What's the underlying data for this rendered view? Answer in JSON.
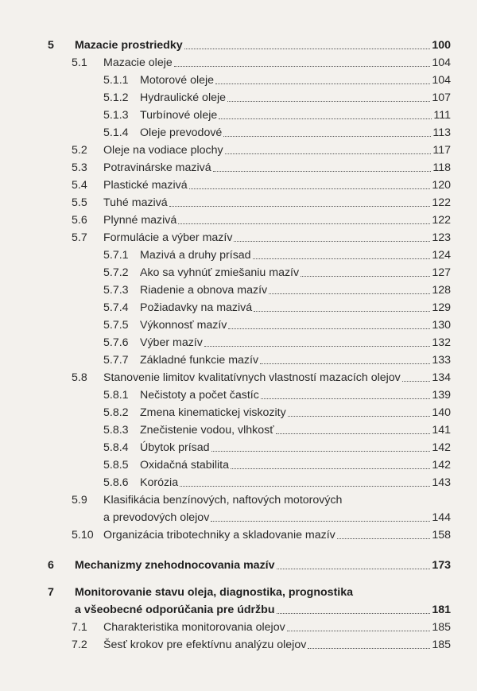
{
  "toc": [
    {
      "level": 1,
      "number": "5",
      "title": "Mazacie prostriedky",
      "page": "100"
    },
    {
      "level": 2,
      "number": "5.1",
      "title": "Mazacie oleje",
      "page": "104"
    },
    {
      "level": 3,
      "number": "5.1.1",
      "title": "Motorové oleje",
      "page": "104"
    },
    {
      "level": 3,
      "number": "5.1.2",
      "title": "Hydraulické oleje",
      "page": "107"
    },
    {
      "level": 3,
      "number": "5.1.3",
      "title": "Turbínové oleje",
      "page": "111"
    },
    {
      "level": 3,
      "number": "5.1.4",
      "title": "Oleje prevodové",
      "page": "113"
    },
    {
      "level": 2,
      "number": "5.2",
      "title": "Oleje na vodiace plochy",
      "page": "117"
    },
    {
      "level": 2,
      "number": "5.3",
      "title": "Potravinárske mazivá",
      "page": "118"
    },
    {
      "level": 2,
      "number": "5.4",
      "title": "Plastické mazivá",
      "page": "120"
    },
    {
      "level": 2,
      "number": "5.5",
      "title": "Tuhé mazivá",
      "page": "122"
    },
    {
      "level": 2,
      "number": "5.6",
      "title": "Plynné mazivá",
      "page": "122"
    },
    {
      "level": 2,
      "number": "5.7",
      "title": "Formulácie a výber mazív",
      "page": "123"
    },
    {
      "level": 3,
      "number": "5.7.1",
      "title": "Mazivá a druhy prísad",
      "page": "124"
    },
    {
      "level": 3,
      "number": "5.7.2",
      "title": "Ako sa vyhnúť zmiešaniu mazív",
      "page": "127"
    },
    {
      "level": 3,
      "number": "5.7.3",
      "title": "Riadenie a obnova mazív",
      "page": "128"
    },
    {
      "level": 3,
      "number": "5.7.4",
      "title": "Požiadavky na mazivá",
      "page": "129"
    },
    {
      "level": 3,
      "number": "5.7.5",
      "title": "Výkonnosť mazív",
      "page": "130"
    },
    {
      "level": 3,
      "number": "5.7.6",
      "title": "Výber mazív",
      "page": "132"
    },
    {
      "level": 3,
      "number": "5.7.7",
      "title": "Základné funkcie mazív",
      "page": "133"
    },
    {
      "level": 2,
      "number": "5.8",
      "title": "Stanovenie limitov kvalitatívnych vlastností mazacích olejov",
      "page": "134"
    },
    {
      "level": 3,
      "number": "5.8.1",
      "title": "Nečistoty a počet častíc",
      "page": "139"
    },
    {
      "level": 3,
      "number": "5.8.2",
      "title": "Zmena kinematickej viskozity",
      "page": "140"
    },
    {
      "level": 3,
      "number": "5.8.3",
      "title": "Znečistenie vodou, vlhkosť",
      "page": "141"
    },
    {
      "level": 3,
      "number": "5.8.4",
      "title": "Úbytok prísad",
      "page": "142"
    },
    {
      "level": 3,
      "number": "5.8.5",
      "title": "Oxidačná stabilita",
      "page": "142"
    },
    {
      "level": 3,
      "number": "5.8.6",
      "title": "Korózia",
      "page": "143"
    },
    {
      "level": 2,
      "number": "5.9",
      "title": "Klasifikácia benzínových, naftových motorových",
      "title2": "a prevodových olejov",
      "page": "144"
    },
    {
      "level": 2,
      "number": "5.10",
      "title": "Organizácia tribotechniky a skladovanie mazív",
      "page": "158"
    },
    {
      "level": 1,
      "number": "6",
      "title": "Mechanizmy znehodnocovania mazív",
      "page": "173",
      "gap_before": true
    },
    {
      "level": 1,
      "number": "7",
      "title": "Monitorovanie stavu oleja, diagnostika, prognostika",
      "title2": "a všeobecné odporúčania pre údržbu",
      "page": "181",
      "gap_before": true
    },
    {
      "level": 2,
      "number": "7.1",
      "title": "Charakteristika monitorovania olejov",
      "page": "185"
    },
    {
      "level": 2,
      "number": "7.2",
      "title": "Šesť krokov pre efektívnu analýzu olejov",
      "page": "185"
    }
  ]
}
